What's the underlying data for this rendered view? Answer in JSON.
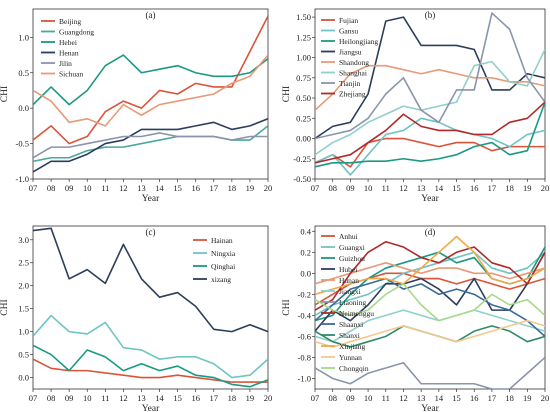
{
  "figure": {
    "background": "#ffffff"
  },
  "chart_data": [
    {
      "type": "line",
      "panel_label": "(a)",
      "xlabel": "Year",
      "ylabel": "CHI",
      "x": [
        "07",
        "08",
        "09",
        "10",
        "11",
        "12",
        "13",
        "14",
        "15",
        "16",
        "17",
        "18",
        "19",
        "20"
      ],
      "ylim": [
        -1.0,
        1.4
      ],
      "yticks": [
        -1.0,
        -0.5,
        0.0,
        0.5,
        1.0
      ],
      "yticklabels": [
        "-1.0",
        "-0.5",
        "0.0",
        "0.5",
        "1.0"
      ],
      "legend_position": "top-left",
      "series": [
        {
          "name": "Beijing",
          "color": "#d9543a",
          "values": [
            -0.45,
            -0.25,
            -0.5,
            -0.4,
            -0.05,
            0.1,
            0.0,
            0.25,
            0.2,
            0.35,
            0.3,
            0.3,
            0.8,
            1.3
          ]
        },
        {
          "name": "Guangdong",
          "color": "#4aa8a0",
          "values": [
            -0.75,
            -0.7,
            -0.7,
            -0.6,
            -0.55,
            -0.55,
            -0.5,
            -0.45,
            -0.4,
            -0.4,
            -0.4,
            -0.45,
            -0.45,
            -0.25
          ]
        },
        {
          "name": "Hebei",
          "color": "#1a9a82",
          "values": [
            0.05,
            0.3,
            0.05,
            0.25,
            0.6,
            0.75,
            0.5,
            0.55,
            0.6,
            0.5,
            0.45,
            0.45,
            0.5,
            0.7
          ]
        },
        {
          "name": "Henan",
          "color": "#2c3e5c",
          "values": [
            -0.9,
            -0.75,
            -0.75,
            -0.65,
            -0.5,
            -0.45,
            -0.3,
            -0.3,
            -0.3,
            -0.25,
            -0.2,
            -0.3,
            -0.25,
            -0.15
          ]
        },
        {
          "name": "Jilin",
          "color": "#8a94ac",
          "values": [
            -0.7,
            -0.55,
            -0.55,
            -0.5,
            -0.45,
            -0.4,
            -0.4,
            -0.35,
            -0.4,
            -0.4,
            -0.4,
            -0.45,
            -0.4,
            -0.4
          ]
        },
        {
          "name": "Sichuan",
          "color": "#e89a78",
          "values": [
            0.25,
            0.1,
            -0.2,
            -0.15,
            -0.25,
            0.05,
            -0.1,
            0.05,
            0.1,
            0.15,
            0.2,
            0.35,
            0.45,
            0.75
          ]
        }
      ]
    },
    {
      "type": "line",
      "panel_label": "(b)",
      "xlabel": "Year",
      "ylabel": "CHI",
      "x": [
        "07",
        "08",
        "09",
        "10",
        "11",
        "12",
        "13",
        "14",
        "15",
        "16",
        "17",
        "18",
        "19",
        "20"
      ],
      "ylim": [
        -0.5,
        1.6
      ],
      "yticks": [
        -0.5,
        -0.25,
        0.0,
        0.25,
        0.5,
        0.75,
        1.0,
        1.25,
        1.5
      ],
      "yticklabels": [
        "-0.50",
        "-0.25",
        "0.00",
        "0.25",
        "0.50",
        "0.75",
        "1.00",
        "1.25",
        "1.50"
      ],
      "legend_position": "top-left",
      "series": [
        {
          "name": "Fujian",
          "color": "#d9543a",
          "values": [
            -0.3,
            -0.2,
            -0.35,
            -0.05,
            0.0,
            0.0,
            -0.05,
            -0.1,
            -0.05,
            -0.05,
            -0.15,
            -0.1,
            -0.1,
            -0.1
          ]
        },
        {
          "name": "Gansu",
          "color": "#6fc4c4",
          "values": [
            -0.3,
            -0.2,
            -0.45,
            -0.2,
            0.05,
            0.1,
            0.25,
            0.2,
            0.1,
            0.05,
            0.0,
            -0.1,
            0.05,
            0.1
          ]
        },
        {
          "name": "Heilongjiang",
          "color": "#1a9a82",
          "values": [
            -0.35,
            -0.3,
            -0.3,
            -0.28,
            -0.28,
            -0.25,
            -0.28,
            -0.25,
            -0.2,
            -0.1,
            -0.05,
            -0.2,
            -0.15,
            0.45
          ]
        },
        {
          "name": "Jiangsu",
          "color": "#2c3e5c",
          "values": [
            0.0,
            0.15,
            0.2,
            0.55,
            1.45,
            1.5,
            1.15,
            1.15,
            1.15,
            1.1,
            0.6,
            0.6,
            0.8,
            0.75
          ]
        },
        {
          "name": "Shandong",
          "color": "#e89a78",
          "values": [
            0.35,
            0.55,
            0.8,
            0.9,
            0.9,
            0.85,
            0.8,
            0.85,
            0.8,
            0.75,
            0.75,
            0.7,
            0.7,
            0.65
          ]
        },
        {
          "name": "Shanghai",
          "color": "#8fd0cc",
          "values": [
            -0.2,
            -0.05,
            0.05,
            0.2,
            0.3,
            0.4,
            0.35,
            0.4,
            0.45,
            0.9,
            0.95,
            0.7,
            0.65,
            1.1
          ]
        },
        {
          "name": "Tianjin",
          "color": "#8a94ac",
          "values": [
            0.0,
            0.05,
            0.1,
            0.25,
            0.55,
            0.75,
            0.35,
            0.2,
            0.6,
            0.6,
            1.55,
            1.35,
            0.75,
            0.45
          ]
        },
        {
          "name": "Zhejiang",
          "color": "#b02a2a",
          "values": [
            -0.3,
            -0.25,
            -0.2,
            -0.05,
            0.1,
            0.3,
            0.15,
            0.1,
            0.1,
            0.05,
            0.05,
            0.2,
            0.25,
            0.45
          ]
        }
      ]
    },
    {
      "type": "line",
      "panel_label": "(c)",
      "xlabel": "Year",
      "ylabel": "CHI",
      "x": [
        "07",
        "08",
        "09",
        "10",
        "11",
        "12",
        "13",
        "14",
        "15",
        "16",
        "17",
        "18",
        "19",
        "20"
      ],
      "ylim": [
        -0.25,
        3.3
      ],
      "yticks": [
        0.0,
        0.5,
        1.0,
        1.5,
        2.0,
        2.5,
        3.0
      ],
      "yticklabels": [
        "0.0",
        "0.5",
        "1.0",
        "1.5",
        "2.0",
        "2.5",
        "3.0"
      ],
      "legend_position": "top-right",
      "series": [
        {
          "name": "Hainan",
          "color": "#d9543a",
          "values": [
            0.4,
            0.2,
            0.15,
            0.15,
            0.1,
            0.05,
            0.0,
            0.0,
            0.05,
            0.0,
            -0.05,
            -0.1,
            -0.1,
            -0.1
          ]
        },
        {
          "name": "Ningxia",
          "color": "#6fc4c4",
          "values": [
            0.9,
            1.35,
            1.0,
            0.95,
            1.2,
            0.65,
            0.6,
            0.4,
            0.45,
            0.45,
            0.3,
            0.0,
            0.05,
            0.4
          ]
        },
        {
          "name": "Qinghai",
          "color": "#1a9a82",
          "values": [
            0.7,
            0.5,
            0.15,
            0.6,
            0.45,
            0.15,
            0.3,
            0.15,
            0.25,
            0.05,
            0.0,
            -0.15,
            -0.2,
            -0.05
          ]
        },
        {
          "name": "xizang",
          "color": "#2c3e5c",
          "values": [
            3.2,
            3.25,
            2.15,
            2.35,
            2.05,
            2.9,
            2.15,
            1.75,
            1.85,
            1.55,
            1.05,
            1.0,
            1.15,
            1.0
          ]
        }
      ]
    },
    {
      "type": "line",
      "panel_label": "(d)",
      "xlabel": "Year",
      "ylabel": "CHI",
      "x": [
        "07",
        "08",
        "09",
        "10",
        "11",
        "12",
        "13",
        "14",
        "15",
        "16",
        "17",
        "18",
        "19",
        "20"
      ],
      "ylim": [
        -1.1,
        0.45
      ],
      "yticks": [
        -1.0,
        -0.8,
        -0.6,
        -0.4,
        -0.2,
        0.0,
        0.2,
        0.4
      ],
      "yticklabels": [
        "-1.0",
        "-0.8",
        "-0.6",
        "-0.4",
        "-0.2",
        "0.0",
        "0.2",
        "0.4"
      ],
      "legend_position": "top-left",
      "series": [
        {
          "name": "Anhui",
          "color": "#d9543a",
          "values": [
            -0.3,
            -0.2,
            -0.1,
            -0.05,
            0.0,
            0.0,
            -0.05,
            -0.05,
            -0.1,
            -0.05,
            -0.1,
            -0.15,
            -0.1,
            -0.05
          ]
        },
        {
          "name": "Guangxi",
          "color": "#6fc4c4",
          "values": [
            -0.4,
            -0.3,
            -0.25,
            -0.2,
            -0.1,
            0.0,
            0.05,
            0.1,
            0.15,
            0.2,
            0.05,
            0.0,
            0.05,
            0.2
          ]
        },
        {
          "name": "Guizhou",
          "color": "#1a9a82",
          "values": [
            -0.45,
            -0.4,
            -0.2,
            -0.05,
            0.05,
            0.1,
            0.15,
            0.2,
            0.1,
            0.15,
            -0.05,
            -0.1,
            -0.05,
            0.25
          ]
        },
        {
          "name": "Hubei",
          "color": "#2c3e5c",
          "values": [
            -0.55,
            -0.35,
            -0.45,
            -0.3,
            -0.1,
            -0.1,
            -0.05,
            -0.15,
            -0.3,
            -0.05,
            -0.35,
            -0.35,
            -0.1,
            0.2
          ]
        },
        {
          "name": "Hunan",
          "color": "#e89a78",
          "values": [
            -0.1,
            -0.05,
            0.0,
            0.05,
            0.1,
            0.05,
            0.0,
            0.05,
            0.05,
            0.0,
            0.0,
            -0.05,
            0.0,
            0.05
          ]
        },
        {
          "name": "Jiangxi",
          "color": "#8fd0cc",
          "values": [
            -0.6,
            -0.65,
            -0.55,
            -0.45,
            -0.4,
            -0.35,
            -0.4,
            -0.45,
            -0.4,
            -0.35,
            -0.4,
            -0.45,
            -0.5,
            -0.55
          ]
        },
        {
          "name": "Liaoning",
          "color": "#8a94ac",
          "values": [
            -0.9,
            -1.0,
            -1.05,
            -0.95,
            -0.9,
            -0.85,
            -1.05,
            -1.05,
            -1.05,
            -1.05,
            -1.1,
            -1.1,
            -0.95,
            -0.8
          ]
        },
        {
          "name": "Neimenggu",
          "color": "#b02a2a",
          "values": [
            -0.35,
            -0.25,
            0.0,
            0.2,
            0.3,
            0.25,
            0.15,
            0.1,
            0.2,
            0.25,
            0.1,
            0.05,
            -0.1,
            0.2
          ]
        },
        {
          "name": "Shaanxi",
          "color": "#3a6a9a",
          "values": [
            -0.45,
            -0.3,
            -0.15,
            -0.1,
            -0.05,
            -0.15,
            -0.1,
            -0.2,
            -0.15,
            -0.2,
            -0.3,
            -0.35,
            -0.45,
            -0.6
          ]
        },
        {
          "name": "Shanxi",
          "color": "#2e8b6a",
          "values": [
            -0.55,
            -0.65,
            -0.7,
            -0.65,
            -0.6,
            -0.5,
            -0.55,
            -0.6,
            -0.65,
            -0.55,
            -0.5,
            -0.55,
            -0.65,
            -0.6
          ]
        },
        {
          "name": "Xinjiang",
          "color": "#f0a848",
          "values": [
            -0.2,
            -0.15,
            -0.1,
            -0.05,
            -0.05,
            -0.1,
            0.05,
            0.2,
            0.35,
            0.2,
            -0.05,
            -0.1,
            -0.05,
            0.05
          ]
        },
        {
          "name": "Yunnan",
          "color": "#f3c88c",
          "values": [
            -0.65,
            -0.7,
            -0.65,
            -0.6,
            -0.55,
            -0.5,
            -0.55,
            -0.6,
            -0.65,
            -0.6,
            -0.55,
            -0.5,
            -0.45,
            -0.5
          ]
        },
        {
          "name": "Chongqin",
          "color": "#a8d88a",
          "values": [
            -0.25,
            -0.35,
            -0.4,
            -0.35,
            -0.2,
            -0.1,
            -0.3,
            -0.45,
            -0.4,
            -0.35,
            -0.2,
            -0.3,
            -0.25,
            -0.4
          ]
        }
      ]
    }
  ]
}
